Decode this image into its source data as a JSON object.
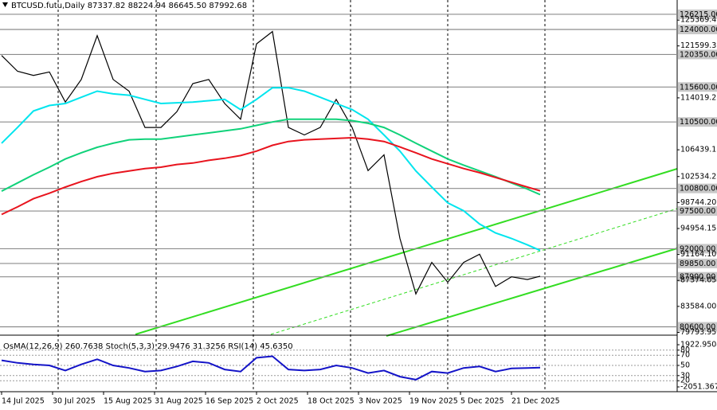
{
  "chart_data": [
    {
      "type": "line",
      "title": "BTCUSD.futu,Daily  87337.82 88224.94 86645.50 87992.68",
      "x": [
        "2025-07-14",
        "2025-07-19",
        "2025-07-24",
        "2025-07-29",
        "2025-08-03",
        "2025-08-08",
        "2025-08-13",
        "2025-08-18",
        "2025-08-23",
        "2025-08-28",
        "2025-09-02",
        "2025-09-07",
        "2025-09-12",
        "2025-09-17",
        "2025-09-22",
        "2025-09-27",
        "2025-10-02",
        "2025-10-07",
        "2025-10-12",
        "2025-10-17",
        "2025-10-22",
        "2025-10-27",
        "2025-11-01",
        "2025-11-06",
        "2025-11-11",
        "2025-11-16",
        "2025-11-21",
        "2025-11-26",
        "2025-12-01",
        "2025-12-06",
        "2025-12-11",
        "2025-12-16",
        "2025-12-21",
        "2025-12-26",
        "2025-12-30"
      ],
      "series": [
        {
          "color": "#000000",
          "values": [
            120200,
            117900,
            117300,
            117800,
            113400,
            116700,
            123100,
            116700,
            115000,
            109700,
            109700,
            112000,
            116100,
            116700,
            113200,
            110900,
            121900,
            123700,
            109700,
            108600,
            109700,
            113800,
            109700,
            103400,
            105700,
            93500,
            85400,
            90000,
            87100,
            90000,
            91200,
            86500,
            87900,
            87500,
            87992.68
          ]
        },
        {
          "color": "#00e5ee",
          "values": [
            107400,
            109700,
            112100,
            112900,
            113200,
            114100,
            115000,
            114600,
            114400,
            113800,
            113200,
            113300,
            113400,
            113600,
            113800,
            112300,
            113800,
            115500,
            115500,
            115000,
            114100,
            113200,
            112300,
            110900,
            108600,
            106250,
            103350,
            101000,
            98700,
            97550,
            95600,
            94300,
            93500,
            92560,
            91750
          ]
        },
        {
          "color": "#10d27a",
          "values": [
            100400,
            101600,
            102800,
            103900,
            105100,
            106000,
            106800,
            107400,
            107900,
            108000,
            108000,
            108300,
            108600,
            108900,
            109200,
            109500,
            110000,
            110500,
            110900,
            110900,
            110900,
            110900,
            110700,
            110300,
            109700,
            108600,
            107400,
            106250,
            105100,
            104200,
            103350,
            102500,
            101600,
            100700,
            99900
          ]
        },
        {
          "color": "#e8141e",
          "values": [
            97000,
            98100,
            99300,
            100100,
            101000,
            101800,
            102500,
            103000,
            103350,
            103700,
            103900,
            104300,
            104500,
            104900,
            105200,
            105600,
            106250,
            107100,
            107650,
            107900,
            108000,
            108100,
            108200,
            108000,
            107650,
            106850,
            106000,
            105100,
            104400,
            103700,
            103100,
            102400,
            101700,
            101000,
            100450
          ]
        }
      ],
      "xlim": [
        "2025-07-14",
        "2026-02-11"
      ],
      "xticks": [
        {
          "value": "2025-07-14",
          "label": "14 Jul 2025"
        },
        {
          "value": "2025-07-30",
          "label": "30 Jul 2025"
        },
        {
          "value": "2025-08-15",
          "label": "15 Aug 2025"
        },
        {
          "value": "2025-08-31",
          "label": "31 Aug 2025"
        },
        {
          "value": "2025-09-16",
          "label": "16 Sep 2025"
        },
        {
          "value": "2025-10-02",
          "label": "2 Oct 2025"
        },
        {
          "value": "2025-10-18",
          "label": "18 Oct 2025"
        },
        {
          "value": "2025-11-03",
          "label": "3 Nov 2025"
        },
        {
          "value": "2025-11-19",
          "label": "19 Nov 2025"
        },
        {
          "value": "2025-12-05",
          "label": "5 Dec 2025"
        },
        {
          "value": "2025-12-21",
          "label": "21 Dec 2025"
        }
      ],
      "ylim": [
        79500,
        128300
      ],
      "yticks": [
        {
          "value": 125369.4,
          "label": "125369.40"
        },
        121599.35,
        114019.25,
        106439.15,
        102534.25,
        {
          "value": 98744.2,
          "label": "98744.20"
        },
        94954.15,
        {
          "value": 91164.1,
          "label": "91164.10"
        },
        87374.05,
        {
          "value": 83584,
          "label": "83584.00"
        },
        79793.95
      ],
      "levels": [
        {
          "value": 126215,
          "label": "126215.00"
        },
        {
          "value": 124000,
          "label": "124000.00"
        },
        {
          "value": 120350,
          "label": "120350.00"
        },
        {
          "value": 115600,
          "label": "115600.00"
        },
        {
          "value": 110500,
          "label": "110500.00"
        },
        {
          "value": 100800,
          "label": "100800.00"
        },
        {
          "value": 97500,
          "label": "97500.00"
        },
        {
          "value": 92000,
          "label": "92000.00"
        },
        {
          "value": 89850,
          "label": "89850.00"
        },
        {
          "value": 87900,
          "label": "87900.00"
        },
        {
          "value": 80600,
          "label": "80600.00"
        }
      ]
    },
    {
      "type": "line",
      "title": "OsMA(12,26,9) 260.7638  Stoch(5,3,3) 29.9476 31.3256  RSI(14) 45.6350",
      "x": [
        "2025-07-14",
        "2025-07-19",
        "2025-07-24",
        "2025-07-29",
        "2025-08-03",
        "2025-08-08",
        "2025-08-13",
        "2025-08-18",
        "2025-08-23",
        "2025-08-28",
        "2025-09-02",
        "2025-09-07",
        "2025-09-12",
        "2025-09-17",
        "2025-09-22",
        "2025-09-27",
        "2025-10-02",
        "2025-10-07",
        "2025-10-12",
        "2025-10-17",
        "2025-10-22",
        "2025-10-27",
        "2025-11-01",
        "2025-11-06",
        "2025-11-11",
        "2025-11-16",
        "2025-11-21",
        "2025-11-26",
        "2025-12-01",
        "2025-12-06",
        "2025-12-11",
        "2025-12-16",
        "2025-12-21",
        "2025-12-26",
        "2025-12-30"
      ],
      "series": [
        {
          "color": "#1414c8",
          "values": [
            60,
            55,
            52,
            50,
            40,
            52,
            62,
            50,
            45,
            38,
            40,
            48,
            58,
            55,
            42,
            38,
            65,
            68,
            42,
            40,
            42,
            50,
            45,
            35,
            40,
            28,
            22,
            38,
            35,
            45,
            48,
            38,
            44,
            45,
            45.635
          ]
        }
      ],
      "xlim": [
        "2025-07-14",
        "2026-02-11"
      ],
      "ylim": [
        0,
        100
      ],
      "yticks": [
        80,
        70,
        50,
        30,
        20
      ],
      "y2lim": [
        -2426,
        2373
      ],
      "y2ticks": [
        1922.9504,
        -2051.3672
      ]
    }
  ]
}
